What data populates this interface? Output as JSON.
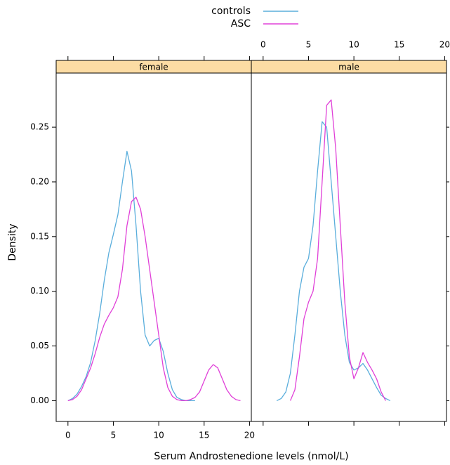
{
  "chart_data": [
    {
      "type": "line",
      "title": "female",
      "xlabel": "Serum Androstenedione levels (nmol/L)",
      "ylabel": "Density",
      "x": [
        0,
        0.5,
        1,
        1.5,
        2,
        2.5,
        3,
        3.5,
        4,
        4.5,
        5,
        5.5,
        6,
        6.5,
        7,
        7.5,
        8,
        8.5,
        9,
        9.5,
        10,
        10.5,
        11,
        11.5,
        12,
        12.5,
        13,
        13.5,
        14,
        14.5,
        15,
        15.5,
        16,
        16.5,
        17,
        17.5,
        18,
        18.5,
        19
      ],
      "xlim": [
        -1.3,
        20.2
      ],
      "xticks": [
        0,
        5,
        10,
        15,
        20
      ],
      "xtick_labels": "bottom",
      "ylim": [
        -0.019,
        0.2995
      ],
      "yticks": [
        {
          "value": 0,
          "label": "0.00"
        },
        {
          "value": 0.05,
          "label": "0.05"
        },
        {
          "value": 0.1,
          "label": "0.10"
        },
        {
          "value": 0.15,
          "label": "0.15"
        },
        {
          "value": 0.2,
          "label": "0.20"
        },
        {
          "value": 0.25,
          "label": "0.25"
        }
      ],
      "legend": "top",
      "series": [
        {
          "name": "controls",
          "color": "#5aaedc",
          "values": [
            0,
            0.002,
            0.006,
            0.013,
            0.022,
            0.035,
            0.055,
            0.08,
            0.11,
            0.135,
            0.152,
            0.17,
            0.2,
            0.228,
            0.21,
            0.16,
            0.1,
            0.06,
            0.05,
            0.055,
            0.057,
            0.045,
            0.025,
            0.01,
            0.003,
            0.001,
            0,
            0,
            0,
            null,
            null,
            null,
            null,
            null,
            null,
            null,
            null,
            null,
            null
          ]
        },
        {
          "name": "ASC",
          "color": "#e040d8",
          "values": [
            0,
            0.001,
            0.004,
            0.01,
            0.02,
            0.03,
            0.043,
            0.058,
            0.07,
            0.078,
            0.085,
            0.095,
            0.12,
            0.16,
            0.182,
            0.186,
            0.175,
            0.15,
            0.12,
            0.09,
            0.06,
            0.03,
            0.012,
            0.004,
            0.001,
            0,
            0,
            0.001,
            0.003,
            0.008,
            0.018,
            0.028,
            0.033,
            0.03,
            0.02,
            0.01,
            0.004,
            0.001,
            0
          ]
        }
      ]
    },
    {
      "type": "line",
      "title": "male",
      "x": [
        1.5,
        2,
        2.5,
        3,
        3.5,
        4,
        4.5,
        5,
        5.5,
        6,
        6.5,
        7,
        7.5,
        8,
        8.5,
        9,
        9.5,
        10,
        10.5,
        11,
        11.5,
        12,
        12.5,
        13,
        13.5,
        14
      ],
      "xlim": [
        -1.3,
        20.2
      ],
      "xticks": [
        0,
        5,
        10,
        15,
        20
      ],
      "xtick_labels": "top",
      "ylim": [
        -0.019,
        0.2995
      ],
      "series": [
        {
          "color": "#5aaedc",
          "values": [
            0,
            0.002,
            0.008,
            0.025,
            0.06,
            0.1,
            0.122,
            0.13,
            0.16,
            0.21,
            0.255,
            0.25,
            0.2,
            0.15,
            0.1,
            0.06,
            0.035,
            0.028,
            0.03,
            0.034,
            0.028,
            0.02,
            0.012,
            0.005,
            0.002,
            0
          ]
        },
        {
          "color": "#e040d8",
          "values": [
            null,
            null,
            null,
            0,
            0.01,
            0.04,
            0.075,
            0.09,
            0.1,
            0.13,
            0.2,
            0.27,
            0.275,
            0.23,
            0.16,
            0.09,
            0.04,
            0.02,
            0.03,
            0.044,
            0.035,
            0.028,
            0.02,
            0.008,
            0,
            null
          ]
        }
      ]
    }
  ]
}
